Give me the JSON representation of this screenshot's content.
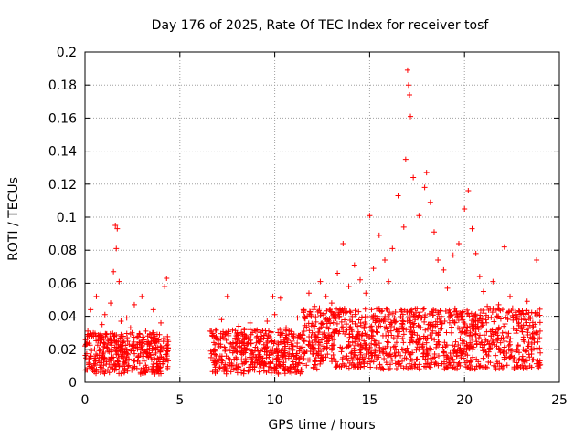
{
  "chart_data": {
    "type": "scatter",
    "title": "Day 176 of 2025, Rate Of TEC Index for receiver tosf",
    "xlabel": "GPS time / hours",
    "ylabel": "ROTI / TECUs",
    "xlim": [
      0,
      25
    ],
    "ylim": [
      0,
      0.2
    ],
    "xticks": [
      0,
      5,
      10,
      15,
      20,
      25
    ],
    "xtick_labels": [
      "0",
      "5",
      "10",
      "15",
      "20",
      "25"
    ],
    "yticks": [
      0,
      0.02,
      0.04,
      0.06,
      0.08,
      0.1,
      0.12,
      0.14,
      0.16,
      0.18,
      0.2
    ],
    "ytick_labels": [
      "0",
      "0.02",
      "0.04",
      "0.06",
      "0.08",
      "0.1",
      "0.12",
      "0.14",
      "0.16",
      "0.18",
      "0.2"
    ],
    "grid": true,
    "marker": "+",
    "series_color": "#ff0000",
    "series": [
      {
        "name": "ROTI",
        "points": [
          [
            0.0,
            0.022
          ],
          [
            0.15,
            0.031
          ],
          [
            0.3,
            0.044
          ],
          [
            0.45,
            0.028
          ],
          [
            0.6,
            0.052
          ],
          [
            0.75,
            0.019
          ],
          [
            0.9,
            0.035
          ],
          [
            1.05,
            0.041
          ],
          [
            1.2,
            0.026
          ],
          [
            1.35,
            0.048
          ],
          [
            1.5,
            0.067
          ],
          [
            1.6,
            0.095
          ],
          [
            1.65,
            0.081
          ],
          [
            1.7,
            0.093
          ],
          [
            1.8,
            0.061
          ],
          [
            1.9,
            0.037
          ],
          [
            2.0,
            0.024
          ],
          [
            2.2,
            0.039
          ],
          [
            2.4,
            0.033
          ],
          [
            2.6,
            0.047
          ],
          [
            2.8,
            0.028
          ],
          [
            3.0,
            0.052
          ],
          [
            3.2,
            0.031
          ],
          [
            3.4,
            0.022
          ],
          [
            3.6,
            0.044
          ],
          [
            3.8,
            0.029
          ],
          [
            4.0,
            0.036
          ],
          [
            4.2,
            0.058
          ],
          [
            4.3,
            0.063
          ],
          [
            4.35,
            0.026
          ],
          [
            6.6,
            0.031
          ],
          [
            6.9,
            0.027
          ],
          [
            7.2,
            0.038
          ],
          [
            7.5,
            0.052
          ],
          [
            7.8,
            0.024
          ],
          [
            8.1,
            0.034
          ],
          [
            8.4,
            0.029
          ],
          [
            8.7,
            0.036
          ],
          [
            9.0,
            0.031
          ],
          [
            9.3,
            0.026
          ],
          [
            9.6,
            0.037
          ],
          [
            9.9,
            0.052
          ],
          [
            10.0,
            0.041
          ],
          [
            10.3,
            0.051
          ],
          [
            10.6,
            0.033
          ],
          [
            10.9,
            0.029
          ],
          [
            11.2,
            0.039
          ],
          [
            11.5,
            0.044
          ],
          [
            11.8,
            0.054
          ],
          [
            12.1,
            0.046
          ],
          [
            12.4,
            0.061
          ],
          [
            12.7,
            0.052
          ],
          [
            13.0,
            0.048
          ],
          [
            13.3,
            0.066
          ],
          [
            13.6,
            0.084
          ],
          [
            13.9,
            0.058
          ],
          [
            14.2,
            0.071
          ],
          [
            14.5,
            0.062
          ],
          [
            14.8,
            0.054
          ],
          [
            15.0,
            0.101
          ],
          [
            15.2,
            0.069
          ],
          [
            15.5,
            0.089
          ],
          [
            15.8,
            0.074
          ],
          [
            16.0,
            0.061
          ],
          [
            16.2,
            0.081
          ],
          [
            16.5,
            0.113
          ],
          [
            16.8,
            0.094
          ],
          [
            16.9,
            0.135
          ],
          [
            17.0,
            0.189
          ],
          [
            17.05,
            0.18
          ],
          [
            17.1,
            0.174
          ],
          [
            17.15,
            0.161
          ],
          [
            17.3,
            0.124
          ],
          [
            17.6,
            0.101
          ],
          [
            17.9,
            0.118
          ],
          [
            18.0,
            0.127
          ],
          [
            18.2,
            0.109
          ],
          [
            18.4,
            0.091
          ],
          [
            18.6,
            0.074
          ],
          [
            18.9,
            0.068
          ],
          [
            19.1,
            0.057
          ],
          [
            19.4,
            0.077
          ],
          [
            19.7,
            0.084
          ],
          [
            20.0,
            0.105
          ],
          [
            20.2,
            0.116
          ],
          [
            20.4,
            0.093
          ],
          [
            20.6,
            0.078
          ],
          [
            20.8,
            0.064
          ],
          [
            21.0,
            0.055
          ],
          [
            21.2,
            0.046
          ],
          [
            21.5,
            0.061
          ],
          [
            21.8,
            0.047
          ],
          [
            22.1,
            0.082
          ],
          [
            22.4,
            0.052
          ],
          [
            22.7,
            0.041
          ],
          [
            23.0,
            0.038
          ],
          [
            23.3,
            0.049
          ],
          [
            23.6,
            0.033
          ],
          [
            23.8,
            0.074
          ],
          [
            23.95,
            0.027
          ]
        ]
      }
    ],
    "bands": [
      {
        "x_start": 0.0,
        "x_end": 4.4,
        "y_low": 0.005,
        "y_high": 0.03
      },
      {
        "x_start": 6.6,
        "x_end": 11.5,
        "y_low": 0.005,
        "y_high": 0.032
      },
      {
        "x_start": 11.5,
        "x_end": 24.0,
        "y_low": 0.008,
        "y_high": 0.045
      }
    ]
  }
}
